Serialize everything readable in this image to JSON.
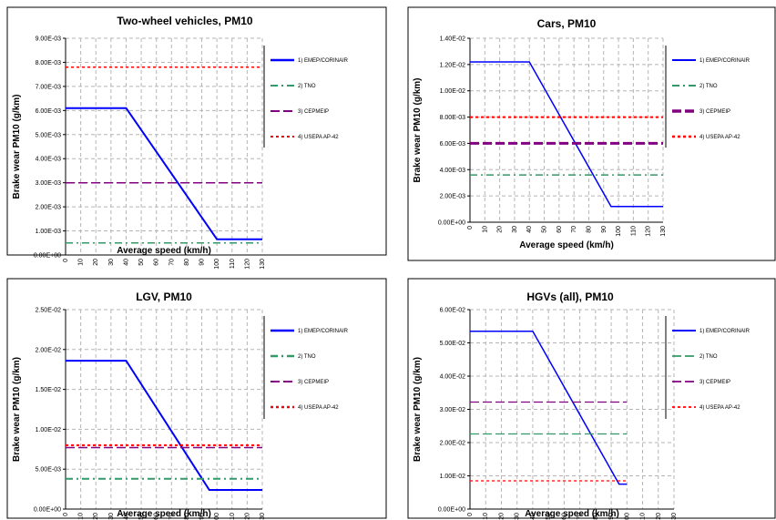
{
  "chart_data": [
    {
      "type": "line",
      "title": "Two-wheel vehicles, PM10",
      "xlabel": "Average speed (km/h)",
      "ylabel": "Brake wear PM10 (g/km)",
      "x_ticks": [
        "0",
        "10",
        "20",
        "30",
        "40",
        "50",
        "60",
        "70",
        "80",
        "90",
        "100",
        "110",
        "120",
        "130"
      ],
      "y_ticks": [
        "0.00E+00",
        "1.00E-03",
        "2.00E-03",
        "3.00E-03",
        "4.00E-03",
        "5.00E-03",
        "6.00E-03",
        "7.00E-03",
        "8.00E-03",
        "9.00E-03"
      ],
      "xlim": [
        0,
        130
      ],
      "ylim": [
        0,
        0.009
      ],
      "grid": true,
      "legend_placement": "right",
      "series": [
        {
          "name": "1) EMEP/CORINAIR",
          "color": "#0000ff",
          "dash": "solid",
          "width": 2,
          "x": [
            0,
            40,
            100,
            130
          ],
          "values": [
            0.0061,
            0.0061,
            0.00065,
            0.00065
          ]
        },
        {
          "name": "2) TNO",
          "color": "#339966",
          "dash": "8 4 2 4",
          "width": 1.5,
          "x": [
            0,
            130
          ],
          "values": [
            0.0005,
            0.0005
          ]
        },
        {
          "name": "3) CEPMEIP",
          "color": "#800080",
          "dash": "10 4",
          "width": 1.5,
          "x": [
            0,
            130
          ],
          "values": [
            0.003,
            0.003
          ]
        },
        {
          "name": "4) USEPA AP-42",
          "color": "#ff0000",
          "dash": "3 3",
          "width": 1.5,
          "x": [
            0,
            130
          ],
          "values": [
            0.0078,
            0.0078
          ]
        }
      ]
    },
    {
      "type": "line",
      "title": "Cars, PM10",
      "xlabel": "Average speed (km/h)",
      "ylabel": "Brake wear PM10 (g/km)",
      "x_ticks": [
        "0",
        "10",
        "20",
        "30",
        "40",
        "50",
        "60",
        "70",
        "80",
        "90",
        "100",
        "110",
        "120",
        "130"
      ],
      "y_ticks": [
        "0.00E+00",
        "2.00E-03",
        "4.00E-03",
        "6.00E-03",
        "8.00E-03",
        "1.00E-02",
        "1.20E-02",
        "1.40E-02"
      ],
      "xlim": [
        0,
        130
      ],
      "ylim": [
        0,
        0.014
      ],
      "grid": true,
      "legend_placement": "right",
      "series": [
        {
          "name": "1) EMEP/CORINAIR",
          "color": "#0000ff",
          "dash": "solid",
          "width": 1.5,
          "x": [
            0,
            40,
            95,
            130
          ],
          "values": [
            0.0122,
            0.0122,
            0.0012,
            0.0012
          ]
        },
        {
          "name": "2) TNO",
          "color": "#339966",
          "dash": "8 4 2 4",
          "width": 1.5,
          "x": [
            0,
            130
          ],
          "values": [
            0.0036,
            0.0036
          ]
        },
        {
          "name": "3) CEPMEIP",
          "color": "#800080",
          "dash": "10 4",
          "width": 3,
          "x": [
            0,
            130
          ],
          "values": [
            0.006,
            0.006
          ]
        },
        {
          "name": "4) USEPA AP-42",
          "color": "#ff0000",
          "dash": "3 3",
          "width": 2,
          "x": [
            0,
            130
          ],
          "values": [
            0.008,
            0.008
          ]
        }
      ]
    },
    {
      "type": "line",
      "title": "LGV, PM10",
      "xlabel": "Average speed (km/h)",
      "ylabel": "Brake wear PM10 (g/km)",
      "x_ticks": [
        "0",
        "10",
        "20",
        "30",
        "40",
        "50",
        "60",
        "70",
        "80",
        "90",
        "100",
        "110",
        "120",
        "130"
      ],
      "y_ticks": [
        "0.00E+00",
        "5.00E-03",
        "1.00E-02",
        "1.50E-02",
        "2.00E-02",
        "2.50E-02"
      ],
      "xlim": [
        0,
        130
      ],
      "ylim": [
        0,
        0.025
      ],
      "grid": true,
      "legend_placement": "right",
      "series": [
        {
          "name": "1) EMEP/CORINAIR",
          "color": "#0000ff",
          "dash": "solid",
          "width": 2,
          "x": [
            0,
            40,
            95,
            130
          ],
          "values": [
            0.0186,
            0.0186,
            0.0024,
            0.0024
          ]
        },
        {
          "name": "2) TNO",
          "color": "#339966",
          "dash": "8 4 2 4",
          "width": 2,
          "x": [
            0,
            130
          ],
          "values": [
            0.0038,
            0.0038
          ]
        },
        {
          "name": "3) CEPMEIP",
          "color": "#800080",
          "dash": "10 4",
          "width": 1.5,
          "x": [
            0,
            130
          ],
          "values": [
            0.0077,
            0.0077
          ]
        },
        {
          "name": "4) USEPA AP-42",
          "color": "#ff0000",
          "dash": "3 3",
          "width": 2,
          "x": [
            0,
            130
          ],
          "values": [
            0.008,
            0.008
          ]
        }
      ]
    },
    {
      "type": "line",
      "title": "HGVs (all), PM10",
      "xlabel": "Average speed (km/h)",
      "ylabel": "Brake wear PM10 (g/km)",
      "x_ticks": [
        "0",
        "10",
        "20",
        "30",
        "40",
        "50",
        "60",
        "70",
        "80",
        "90",
        "100",
        "110",
        "120",
        "130"
      ],
      "y_ticks": [
        "0.00E+00",
        "1.00E-02",
        "2.00E-02",
        "3.00E-02",
        "4.00E-02",
        "5.00E-02",
        "6.00E-02"
      ],
      "xlim": [
        0,
        130
      ],
      "ylim": [
        0,
        0.06
      ],
      "grid": true,
      "legend_placement": "right",
      "series": [
        {
          "name": "1) EMEP/CORINAIR",
          "color": "#0000ff",
          "dash": "solid",
          "width": 1.5,
          "x": [
            0,
            40,
            95,
            100
          ],
          "values": [
            0.0535,
            0.0535,
            0.0075,
            0.0075
          ]
        },
        {
          "name": "2) TNO",
          "color": "#339966",
          "dash": "10 4",
          "width": 1.2,
          "x": [
            0,
            100
          ],
          "values": [
            0.0226,
            0.0226
          ]
        },
        {
          "name": "3) CEPMEIP",
          "color": "#800080",
          "dash": "10 4",
          "width": 1.2,
          "x": [
            0,
            100
          ],
          "values": [
            0.0322,
            0.0322
          ]
        },
        {
          "name": "4) USEPA AP-42",
          "color": "#ff0000",
          "dash": "3 3",
          "width": 1.2,
          "x": [
            0,
            100
          ],
          "values": [
            0.0085,
            0.0085
          ]
        }
      ]
    }
  ]
}
